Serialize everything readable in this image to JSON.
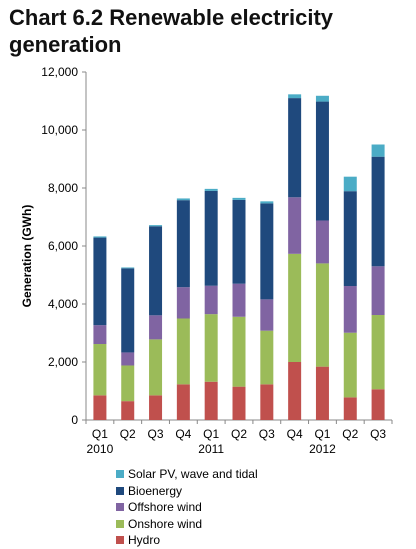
{
  "title": "Chart 6.2 Renewable electricity generation",
  "chart_data": {
    "type": "bar",
    "stacked": true,
    "ylabel": "Generation (GWh)",
    "xlabel": "",
    "ylim": [
      0,
      12000
    ],
    "yticks": [
      "0",
      "2,000",
      "4,000",
      "6,000",
      "8,000",
      "10,000",
      "12,000"
    ],
    "categories": [
      "Q1 2010",
      "Q2 2010",
      "Q3 2010",
      "Q4 2010",
      "Q1 2011",
      "Q2 2011",
      "Q3 2011",
      "Q4 2011",
      "Q1 2012",
      "Q2 2012",
      "Q3 2012"
    ],
    "quarter_labels": [
      "Q1",
      "Q2",
      "Q3",
      "Q4",
      "Q1",
      "Q2",
      "Q3",
      "Q4",
      "Q1",
      "Q2",
      "Q3"
    ],
    "year_labels": [
      "2010",
      "",
      "",
      "",
      "2011",
      "",
      "",
      "",
      "2012",
      "",
      ""
    ],
    "series": [
      {
        "name": "Hydro",
        "color": "#c0504d",
        "values": [
          850,
          650,
          850,
          1230,
          1320,
          1150,
          1230,
          2000,
          1840,
          780,
          1060
        ]
      },
      {
        "name": "Onshore wind",
        "color": "#9bbb59",
        "values": [
          1770,
          1230,
          1930,
          2270,
          2330,
          2410,
          1850,
          3730,
          3560,
          2230,
          2560
        ]
      },
      {
        "name": "Offshore wind",
        "color": "#8064a2",
        "values": [
          650,
          450,
          830,
          1080,
          980,
          1140,
          1080,
          1950,
          1480,
          1610,
          1680
        ]
      },
      {
        "name": "Bioenergy",
        "color": "#1f497d",
        "values": [
          3020,
          2900,
          3070,
          3000,
          3270,
          2890,
          3310,
          3420,
          4100,
          3270,
          3780
        ]
      },
      {
        "name": "Solar PV, wave and tidal",
        "color": "#4bacc6",
        "values": [
          40,
          30,
          40,
          60,
          70,
          70,
          70,
          130,
          200,
          500,
          420
        ]
      }
    ],
    "legend_order": [
      "Solar PV, wave and tidal",
      "Bioenergy",
      "Offshore wind",
      "Onshore wind",
      "Hydro"
    ],
    "legend_position": "bottom",
    "grid": false
  }
}
